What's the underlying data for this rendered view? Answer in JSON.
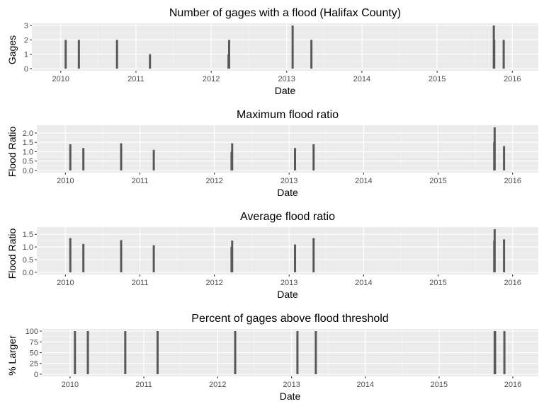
{
  "colors": {
    "background": "#ffffff",
    "panel": "#ebebeb",
    "grid_major": "#ffffff",
    "grid_minor": "#f5f5f5",
    "bar": "#595959",
    "tick_text": "#4d4d4d",
    "title_text": "#000000"
  },
  "chart_data": [
    {
      "type": "bar",
      "title": "Number of gages with a flood (Halifax County)",
      "xlabel": "Date",
      "ylabel": "Gages",
      "ylim": [
        0,
        3
      ],
      "yticks": [
        0,
        1,
        2,
        3
      ],
      "x_tick_labels": [
        "2010",
        "2011",
        "2012",
        "2013",
        "2014",
        "2015",
        "2016"
      ],
      "grid": true,
      "x": [
        "2010-01-25",
        "2010-03-30",
        "2010-10-01",
        "2011-03-10",
        "2012-03-25",
        "2012-03-28",
        "2013-01-30",
        "2013-05-01",
        "2015-10-03",
        "2015-10-05",
        "2015-11-20"
      ],
      "values": [
        2,
        2,
        2,
        1,
        1,
        2,
        3,
        2,
        3,
        2,
        2
      ]
    },
    {
      "type": "bar",
      "title": "Maximum flood ratio",
      "xlabel": "Date",
      "ylabel": "Flood Ratio",
      "ylim": [
        0,
        2.3
      ],
      "yticks": [
        0.0,
        0.5,
        1.0,
        1.5,
        2.0
      ],
      "ytick_labels": [
        "0.0",
        "0.5",
        "1.0",
        "1.5",
        "2.0"
      ],
      "x_tick_labels": [
        "2010",
        "2011",
        "2012",
        "2013",
        "2014",
        "2015",
        "2016"
      ],
      "grid": true,
      "x": [
        "2010-01-25",
        "2010-03-30",
        "2010-10-01",
        "2011-03-10",
        "2012-03-25",
        "2012-03-28",
        "2013-01-30",
        "2013-05-01",
        "2015-10-03",
        "2015-10-05",
        "2015-11-20"
      ],
      "values": [
        1.4,
        1.2,
        1.45,
        1.1,
        1.0,
        1.45,
        1.2,
        1.4,
        1.5,
        2.3,
        1.3
      ]
    },
    {
      "type": "bar",
      "title": "Average flood ratio",
      "xlabel": "Date",
      "ylabel": "Flood Ratio",
      "ylim": [
        0,
        1.7
      ],
      "yticks": [
        0.0,
        0.5,
        1.0,
        1.5
      ],
      "ytick_labels": [
        "0.0",
        "0.5",
        "1.0",
        "1.5"
      ],
      "x_tick_labels": [
        "2010",
        "2011",
        "2012",
        "2013",
        "2014",
        "2015",
        "2016"
      ],
      "grid": true,
      "x": [
        "2010-01-25",
        "2010-03-30",
        "2010-10-01",
        "2011-03-10",
        "2012-03-25",
        "2012-03-28",
        "2013-01-30",
        "2013-05-01",
        "2015-10-03",
        "2015-10-05",
        "2015-11-20"
      ],
      "values": [
        1.35,
        1.12,
        1.27,
        1.07,
        1.0,
        1.25,
        1.1,
        1.35,
        1.25,
        1.7,
        1.3
      ]
    },
    {
      "type": "bar",
      "title": "Percent of gages above flood threshold",
      "xlabel": "Date",
      "ylabel": "% Larger",
      "ylim": [
        0,
        100
      ],
      "yticks": [
        0,
        25,
        50,
        75,
        100
      ],
      "x_tick_labels": [
        "2010",
        "2011",
        "2012",
        "2013",
        "2014",
        "2015",
        "2016"
      ],
      "grid": true,
      "x": [
        "2010-01-25",
        "2010-03-30",
        "2010-10-01",
        "2011-03-10",
        "2012-03-28",
        "2013-01-30",
        "2013-05-01",
        "2015-10-03",
        "2015-10-05",
        "2015-11-20"
      ],
      "values": [
        100,
        100,
        100,
        100,
        100,
        100,
        100,
        100,
        100,
        100
      ]
    }
  ]
}
